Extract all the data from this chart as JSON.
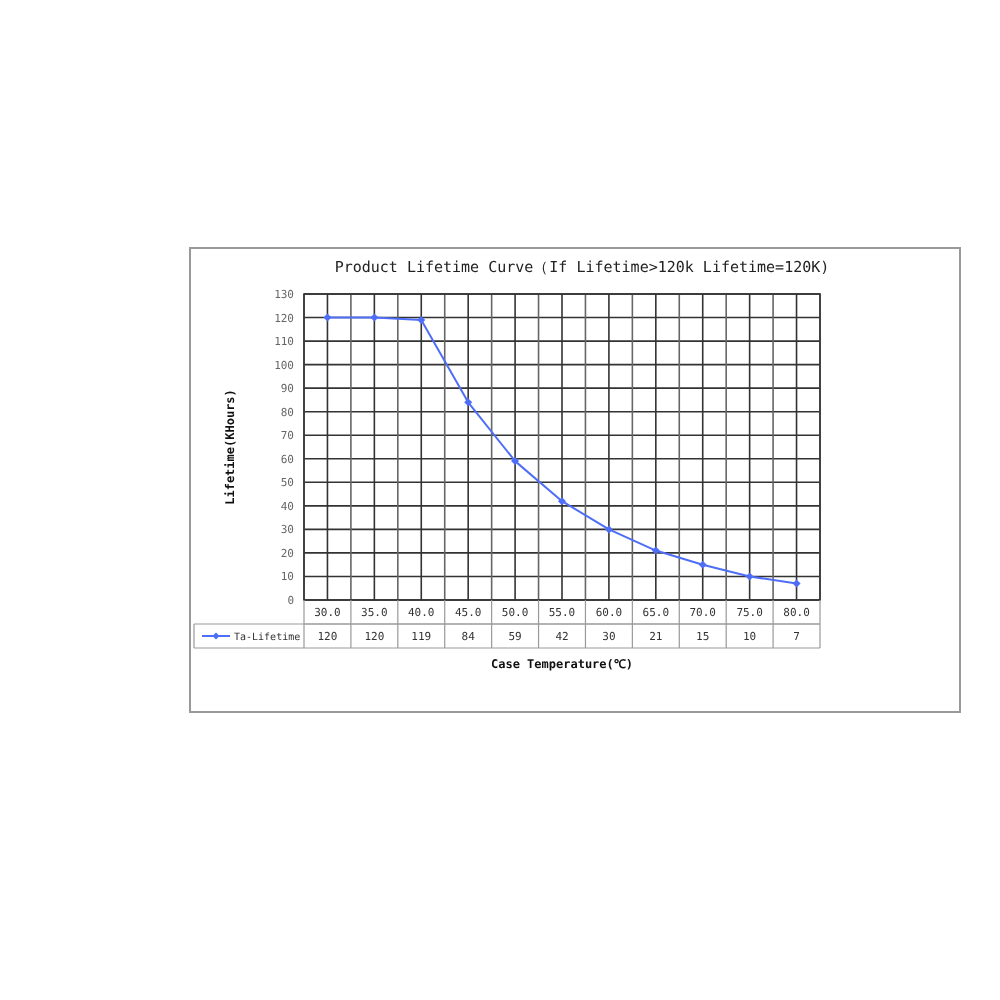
{
  "chart_data": {
    "type": "line",
    "title": "Product Lifetime Curve（If Lifetime>120k Lifetime=120K)",
    "xlabel": "Case Temperature(℃)",
    "ylabel": "Lifetime(KHours)",
    "categories": [
      "30.0",
      "35.0",
      "40.0",
      "45.0",
      "50.0",
      "55.0",
      "60.0",
      "65.0",
      "70.0",
      "75.0",
      "80.0"
    ],
    "series": [
      {
        "name": "Ta-Lifetime",
        "color": "#4f6ef7",
        "values": [
          120,
          120,
          119,
          84,
          59,
          42,
          30,
          21,
          15,
          10,
          7
        ]
      }
    ],
    "ylim": [
      0,
      130
    ],
    "yticks": [
      0,
      10,
      20,
      30,
      40,
      50,
      60,
      70,
      80,
      90,
      100,
      110,
      120,
      130
    ],
    "grid": true,
    "marker": "diamond",
    "data_labels": true
  }
}
